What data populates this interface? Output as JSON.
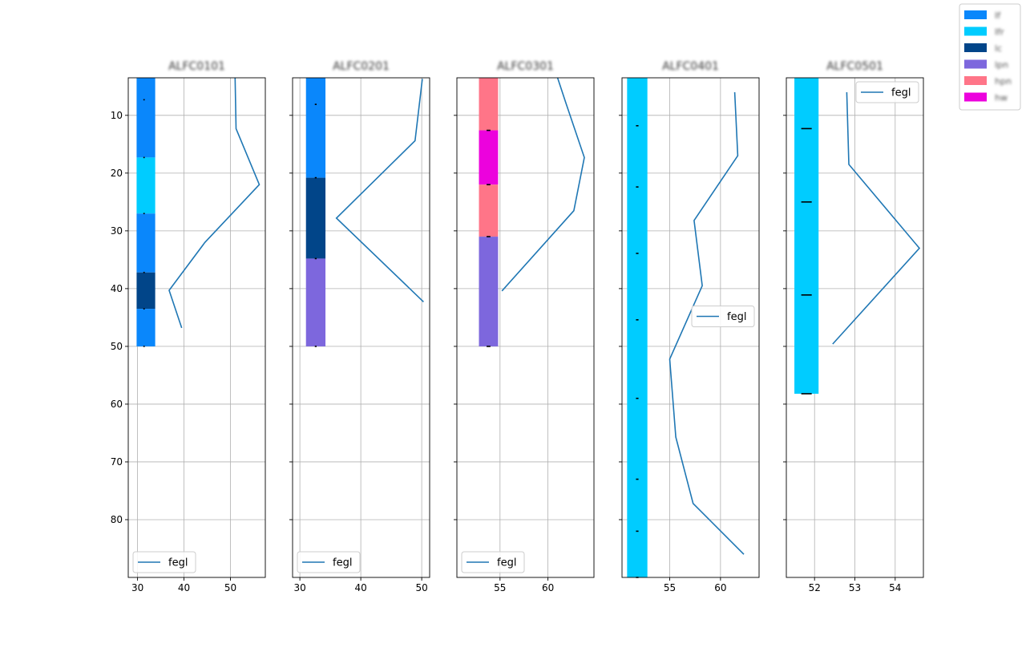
{
  "chart_data": {
    "type": "line",
    "y_axis": {
      "ylim": [
        90,
        3.5
      ],
      "inverted": true,
      "ticks": [
        10,
        20,
        30,
        40,
        50,
        60,
        70,
        80
      ]
    },
    "global_legend": {
      "placement": "top-right",
      "entries": [
        {
          "label": "If",
          "color": "#0a87fb"
        },
        {
          "label": "Ifr",
          "color": "#00ccff"
        },
        {
          "label": "lc",
          "color": "#014589"
        },
        {
          "label": "lpn",
          "color": "#7d67dd"
        },
        {
          "label": "hpn",
          "color": "#ff7588"
        },
        {
          "label": "hw",
          "color": "#ec02dd"
        }
      ]
    },
    "panels": [
      {
        "title": "ALFC0101",
        "xlim": [
          28,
          57.5
        ],
        "xticks": [
          30,
          40,
          50
        ],
        "bar_x": [
          29.8,
          33.8
        ],
        "legend_position": "bottom-left",
        "series": [
          {
            "name": "fegl",
            "x": [
              51,
              51.2,
              56.2,
              44.5,
              36.8,
              39.5
            ],
            "y": [
              3.5,
              12.3,
              22,
              32,
              40.3,
              46.8
            ]
          }
        ],
        "segments": [
          {
            "top": 3.5,
            "bottom": 17.3,
            "color": "#0a87fb"
          },
          {
            "top": 17.3,
            "bottom": 27,
            "color": "#00ccff"
          },
          {
            "top": 27,
            "bottom": 37.2,
            "color": "#0a87fb"
          },
          {
            "top": 37.2,
            "bottom": 43.5,
            "color": "#014589"
          },
          {
            "top": 43.5,
            "bottom": 50,
            "color": "#0a87fb"
          }
        ],
        "markers": [
          7.3,
          17.3,
          27,
          37.2,
          43.5,
          50
        ],
        "marker_x": 31.4,
        "marker_len": 0.3
      },
      {
        "title": "ALFC0201",
        "xlim": [
          28.8,
          51.3
        ],
        "xticks": [
          30,
          40,
          50
        ],
        "bar_x": [
          31,
          34.2
        ],
        "legend_position": "bottom-left",
        "series": [
          {
            "name": "fegl",
            "x": [
              50.1,
              48.9,
              36,
              50.3
            ],
            "y": [
              3.7,
              14.4,
              27.8,
              42.3
            ]
          }
        ],
        "segments": [
          {
            "top": 3.5,
            "bottom": 20.8,
            "color": "#0a87fb"
          },
          {
            "top": 20.8,
            "bottom": 34.8,
            "color": "#014589"
          },
          {
            "top": 34.8,
            "bottom": 50,
            "color": "#7d67dd"
          }
        ],
        "markers": [
          8.1,
          20.8,
          34.8,
          50
        ],
        "marker_x": 32.6,
        "marker_len": 0.3
      },
      {
        "title": "ALFC0301",
        "xlim": [
          50.5,
          64.8
        ],
        "xticks": [
          55,
          60
        ],
        "bar_x": [
          52.8,
          54.8
        ],
        "legend_position": "bottom-left",
        "series": [
          {
            "name": "fegl",
            "x": [
              61,
              61.9,
              63.8,
              62.7,
              55.2
            ],
            "y": [
              3.5,
              8,
              17.3,
              26.5,
              40.4
            ]
          }
        ],
        "segments": [
          {
            "top": 3.5,
            "bottom": 12.6,
            "color": "#ff7588"
          },
          {
            "top": 12.6,
            "bottom": 22,
            "color": "#ec02dd"
          },
          {
            "top": 22,
            "bottom": 31,
            "color": "#ff7588"
          },
          {
            "top": 31,
            "bottom": 50,
            "color": "#7d67dd"
          }
        ],
        "markers": [
          12.6,
          22,
          31,
          50
        ],
        "marker_x": 53.8,
        "marker_len": 0.4
      },
      {
        "title": "ALFC0401",
        "xlim": [
          50.3,
          63.8
        ],
        "xticks": [
          55,
          60
        ],
        "bar_x": [
          50.8,
          52.8
        ],
        "legend_position": "center-right",
        "series": [
          {
            "name": "fegl",
            "x": [
              61.4,
              61.7,
              57.4,
              58.2,
              55,
              55.6,
              57.3,
              62.3
            ],
            "y": [
              6,
              17,
              28.2,
              39.5,
              52.2,
              65.7,
              77.2,
              86
            ]
          }
        ],
        "segments": [
          {
            "top": 3.5,
            "bottom": 90,
            "color": "#00ccff"
          }
        ],
        "markers": [
          11.8,
          22.4,
          33.9,
          45.4,
          59,
          73,
          82,
          90
        ],
        "marker_x": 51.8,
        "marker_len": 0.25
      },
      {
        "title": "ALFC0501",
        "xlim": [
          51.3,
          54.7
        ],
        "xticks": [
          52,
          53,
          54
        ],
        "bar_x": [
          51.5,
          52.1
        ],
        "legend_position": "top-right",
        "series": [
          {
            "name": "fegl",
            "x": [
              52.8,
              52.85,
              54.6,
              52.45
            ],
            "y": [
              6,
              18.5,
              33,
              49.6
            ]
          }
        ],
        "segments": [
          {
            "top": 3.5,
            "bottom": 58.2,
            "color": "#00ccff"
          }
        ],
        "markers": [
          12.3,
          25,
          41.1,
          58.2
        ],
        "marker_x": 51.8,
        "marker_len": 0.26
      }
    ]
  }
}
